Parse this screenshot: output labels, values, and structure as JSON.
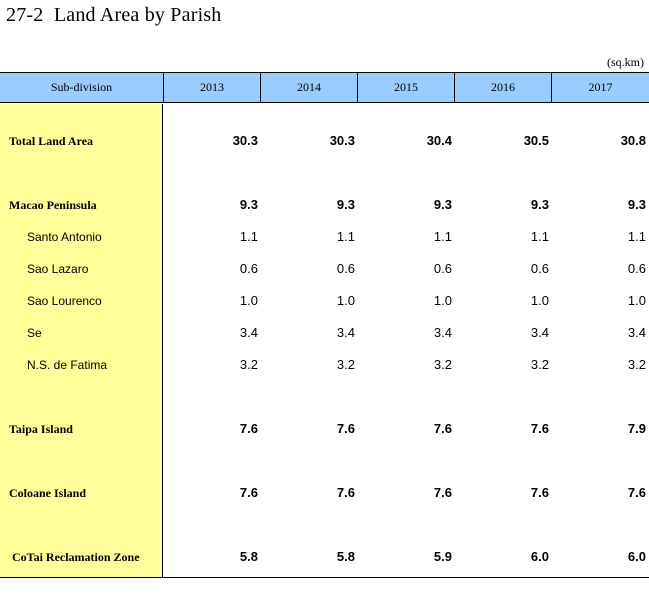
{
  "title": "27-2  Land Area by Parish",
  "unit": "(sq.km)",
  "table": {
    "header_label": "Sub-division",
    "years": [
      "2013",
      "2014",
      "2015",
      "2016",
      "2017"
    ],
    "rows": [
      {
        "label": "Total Land Area",
        "values": [
          "30.3",
          "30.3",
          "30.4",
          "30.5",
          "30.8"
        ],
        "bold": true
      },
      {
        "label": "Macao Peninsula",
        "values": [
          "9.3",
          "9.3",
          "9.3",
          "9.3",
          "9.3"
        ],
        "bold": true
      },
      {
        "label": "Santo Antonio",
        "values": [
          "1.1",
          "1.1",
          "1.1",
          "1.1",
          "1.1"
        ],
        "bold": false
      },
      {
        "label": "Sao Lazaro",
        "values": [
          "0.6",
          "0.6",
          "0.6",
          "0.6",
          "0.6"
        ],
        "bold": false
      },
      {
        "label": "Sao Lourenco",
        "values": [
          "1.0",
          "1.0",
          "1.0",
          "1.0",
          "1.0"
        ],
        "bold": false
      },
      {
        "label": "Se",
        "values": [
          "3.4",
          "3.4",
          "3.4",
          "3.4",
          "3.4"
        ],
        "bold": false
      },
      {
        "label": "N.S. de Fatima",
        "values": [
          "3.2",
          "3.2",
          "3.2",
          "3.2",
          "3.2"
        ],
        "bold": false
      },
      {
        "label": "Taipa Island",
        "values": [
          "7.6",
          "7.6",
          "7.6",
          "7.6",
          "7.9"
        ],
        "bold": true
      },
      {
        "label": "Coloane Island",
        "values": [
          "7.6",
          "7.6",
          "7.6",
          "7.6",
          "7.6"
        ],
        "bold": true
      },
      {
        "label": "CoTai Reclamation Zone",
        "values": [
          "5.8",
          "5.8",
          "5.9",
          "6.0",
          "6.0"
        ],
        "bold": true
      }
    ]
  }
}
